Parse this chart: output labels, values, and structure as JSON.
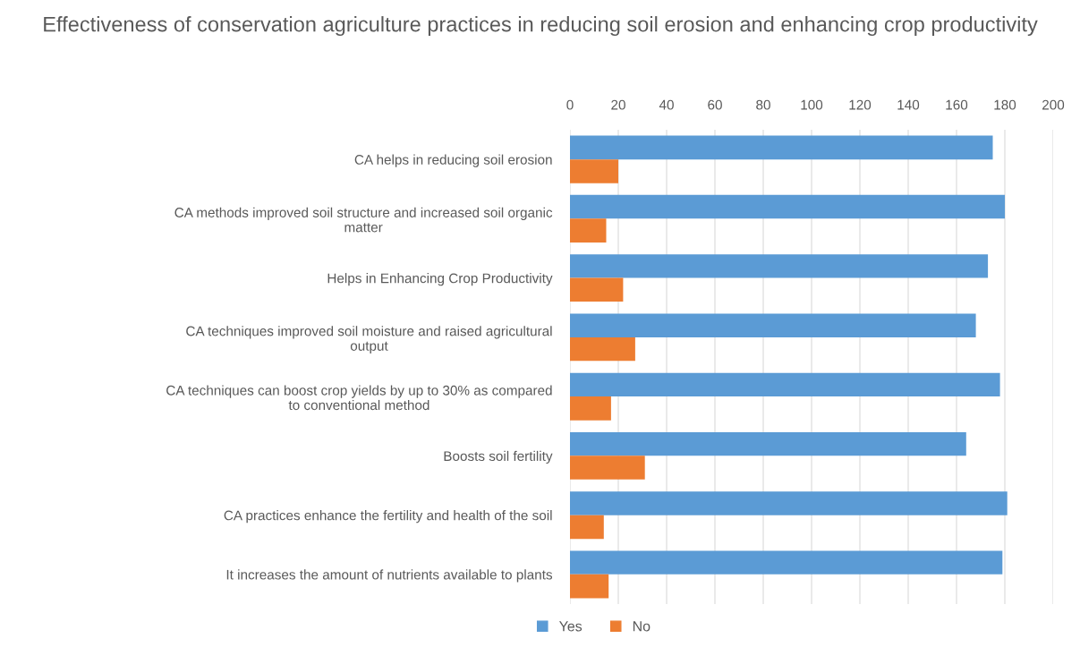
{
  "chart_data": {
    "type": "bar",
    "orientation": "horizontal",
    "title": "Effectiveness of conservation agriculture practices in reducing soil erosion and enhancing crop productivity",
    "categories": [
      "CA helps in reducing soil erosion",
      "CA methods improved soil structure and increased soil organic matter",
      "Helps in Enhancing Crop Productivity",
      "CA techniques improved soil moisture and raised agricultural output",
      "CA techniques can boost crop yields by up to 30% as compared to conventional method",
      "Boosts soil fertility",
      "CA practices enhance the fertility and health of the soil",
      "It increases the amount of nutrients available to plants"
    ],
    "series": [
      {
        "name": "Yes",
        "color": "#5b9bd5",
        "values": [
          175,
          180,
          173,
          168,
          178,
          164,
          181,
          179
        ]
      },
      {
        "name": "No",
        "color": "#ed7d31",
        "values": [
          20,
          15,
          22,
          27,
          17,
          31,
          14,
          16
        ]
      }
    ],
    "xlim": [
      0,
      200
    ],
    "xticks": [
      0,
      20,
      40,
      60,
      80,
      100,
      120,
      140,
      160,
      180,
      200
    ],
    "grid": "x",
    "legend": "bottom"
  }
}
